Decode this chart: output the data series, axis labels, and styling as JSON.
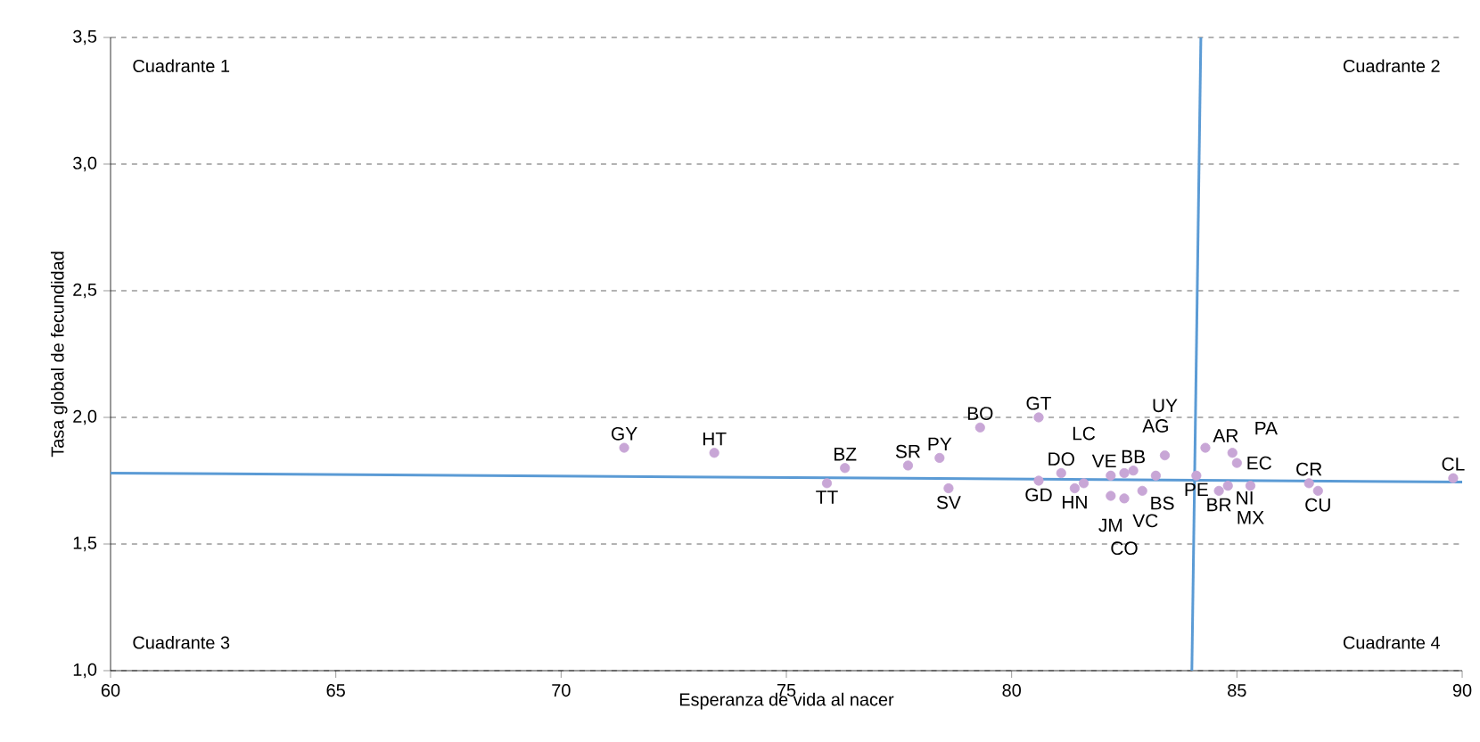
{
  "chart_data": {
    "type": "scatter",
    "xlabel": "Esperanza de vida al nacer",
    "ylabel": "Tasa global de fecundidad",
    "xlim": [
      60,
      90
    ],
    "xticks": [
      60,
      65,
      70,
      75,
      80,
      85,
      90
    ],
    "ylim": [
      1.0,
      3.5
    ],
    "yticks": [
      {
        "value": 1.0,
        "label": "1,0"
      },
      {
        "value": 1.5,
        "label": "1,5"
      },
      {
        "value": 2.0,
        "label": "2,0"
      },
      {
        "value": 2.5,
        "label": "2,5"
      },
      {
        "value": 3.0,
        "label": "3,0"
      },
      {
        "value": 3.5,
        "label": "3,5"
      }
    ],
    "grid": "y",
    "series": [
      {
        "marker": "circle",
        "color": "#c8a6d6",
        "x": [
          71.4,
          73.4,
          76.3,
          75.9,
          77.7,
          78.4,
          78.6,
          79.3,
          80.6,
          80.6,
          81.1,
          81.4,
          81.6,
          82.2,
          82.5,
          82.2,
          82.5,
          82.9,
          82.7,
          83.2,
          83.4,
          84.3,
          84.9,
          85.0,
          84.1,
          84.6,
          84.8,
          85.3,
          86.6,
          86.8,
          89.8
        ],
        "values": [
          1.88,
          1.86,
          1.8,
          1.74,
          1.81,
          1.84,
          1.72,
          1.96,
          2.0,
          1.75,
          1.78,
          1.72,
          1.74,
          1.77,
          1.78,
          1.69,
          1.68,
          1.71,
          1.79,
          1.77,
          1.85,
          1.88,
          1.86,
          1.82,
          1.77,
          1.71,
          1.73,
          1.73,
          1.74,
          1.71,
          1.76
        ]
      },
      {
        "type": "line",
        "marker": "none",
        "color": "#5b9bd5",
        "x": [
          60,
          90
        ],
        "values": [
          1.78,
          1.745
        ]
      },
      {
        "type": "line",
        "marker": "none",
        "color": "#5b9bd5",
        "x": [
          84.0,
          84.2
        ],
        "values": [
          1.0,
          3.5
        ]
      }
    ],
    "annotations": [
      "Cuadrante 1",
      "Cuadrante 2",
      "Cuadrante 3",
      "Cuadrante 4",
      {
        "text": "GY",
        "x": 71.4,
        "y": 1.88
      },
      {
        "text": "HT",
        "x": 73.4,
        "y": 1.86
      },
      {
        "text": "BZ",
        "x": 76.3,
        "y": 1.8
      },
      {
        "text": "TT",
        "x": 75.9,
        "y": 1.74
      },
      {
        "text": "SR",
        "x": 77.7,
        "y": 1.81
      },
      {
        "text": "PY",
        "x": 78.4,
        "y": 1.84
      },
      {
        "text": "SV",
        "x": 78.6,
        "y": 1.72
      },
      {
        "text": "BO",
        "x": 79.3,
        "y": 1.96
      },
      {
        "text": "GT",
        "x": 80.6,
        "y": 2.0
      },
      {
        "text": "GD",
        "x": 80.6,
        "y": 1.75
      },
      {
        "text": "DO",
        "x": 81.1,
        "y": 1.78
      },
      {
        "text": "HN",
        "x": 81.4,
        "y": 1.72
      },
      {
        "text": "LC",
        "x": 81.6,
        "y": 1.74
      },
      {
        "text": "JM",
        "x": 82.2,
        "y": 1.77
      },
      {
        "text": "VE",
        "x": 82.5,
        "y": 1.78
      },
      {
        "text": "VC",
        "x": 82.2,
        "y": 1.69
      },
      {
        "text": "CO",
        "x": 82.5,
        "y": 1.68
      },
      {
        "text": "BS",
        "x": 82.9,
        "y": 1.71
      },
      {
        "text": "BB",
        "x": 82.7,
        "y": 1.79
      },
      {
        "text": "AG",
        "x": 83.2,
        "y": 1.77
      },
      {
        "text": "UY",
        "x": 83.4,
        "y": 1.85
      },
      {
        "text": "AR",
        "x": 84.3,
        "y": 1.88
      },
      {
        "text": "PA",
        "x": 84.9,
        "y": 1.86
      },
      {
        "text": "EC",
        "x": 85.0,
        "y": 1.82
      },
      {
        "text": "PE",
        "x": 84.1,
        "y": 1.77
      },
      {
        "text": "BR",
        "x": 84.6,
        "y": 1.71
      },
      {
        "text": "NI",
        "x": 84.8,
        "y": 1.73
      },
      {
        "text": "MX",
        "x": 85.3,
        "y": 1.73
      },
      {
        "text": "CR",
        "x": 86.6,
        "y": 1.74
      },
      {
        "text": "CU",
        "x": 86.8,
        "y": 1.71
      },
      {
        "text": "CL",
        "x": 89.8,
        "y": 1.76
      }
    ]
  }
}
